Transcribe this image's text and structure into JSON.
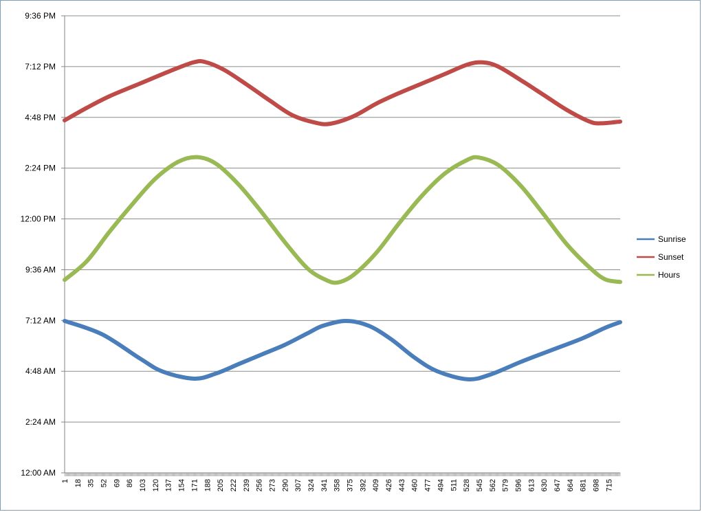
{
  "chart_data": {
    "type": "line",
    "title": "",
    "xlabel": "",
    "ylabel": "",
    "x_range": [
      1,
      730
    ],
    "x_tick_labels": [
      "1",
      "18",
      "35",
      "52",
      "69",
      "86",
      "103",
      "120",
      "137",
      "154",
      "171",
      "188",
      "205",
      "222",
      "239",
      "256",
      "273",
      "290",
      "307",
      "324",
      "341",
      "358",
      "375",
      "392",
      "409",
      "426",
      "443",
      "460",
      "477",
      "494",
      "511",
      "528",
      "545",
      "562",
      "579",
      "596",
      "613",
      "630",
      "647",
      "664",
      "681",
      "698",
      "715"
    ],
    "y_range_hours": [
      0,
      21.6
    ],
    "y_tick_values": [
      0,
      2.4,
      4.8,
      7.2,
      9.6,
      12,
      14.4,
      16.8,
      19.2,
      21.6
    ],
    "y_tick_labels": [
      "12:00 AM",
      "2:24 AM",
      "4:48 AM",
      "7:12 AM",
      "9:36 AM",
      "12:00 PM",
      "2:24 PM",
      "4:48 PM",
      "7:12 PM",
      "9:36 PM"
    ],
    "grid": "horizontal",
    "legend_position": "right",
    "series": [
      {
        "name": "Sunrise",
        "color": "#4a7ebb",
        "points": [
          [
            1,
            7.18
          ],
          [
            50,
            6.55
          ],
          [
            100,
            5.4
          ],
          [
            130,
            4.78
          ],
          [
            171,
            4.45
          ],
          [
            200,
            4.7
          ],
          [
            230,
            5.15
          ],
          [
            260,
            5.6
          ],
          [
            290,
            6.05
          ],
          [
            320,
            6.6
          ],
          [
            340,
            6.95
          ],
          [
            370,
            7.18
          ],
          [
            400,
            6.95
          ],
          [
            430,
            6.3
          ],
          [
            460,
            5.45
          ],
          [
            490,
            4.8
          ],
          [
            530,
            4.42
          ],
          [
            560,
            4.65
          ],
          [
            600,
            5.25
          ],
          [
            640,
            5.8
          ],
          [
            680,
            6.35
          ],
          [
            710,
            6.85
          ],
          [
            730,
            7.12
          ]
        ]
      },
      {
        "name": "Sunset",
        "color": "#be4b48",
        "points": [
          [
            1,
            16.66
          ],
          [
            30,
            17.25
          ],
          [
            60,
            17.8
          ],
          [
            100,
            18.4
          ],
          [
            140,
            19.0
          ],
          [
            170,
            19.4
          ],
          [
            185,
            19.42
          ],
          [
            210,
            19.05
          ],
          [
            240,
            18.35
          ],
          [
            270,
            17.6
          ],
          [
            300,
            16.9
          ],
          [
            330,
            16.55
          ],
          [
            350,
            16.5
          ],
          [
            380,
            16.85
          ],
          [
            410,
            17.45
          ],
          [
            440,
            17.95
          ],
          [
            470,
            18.4
          ],
          [
            500,
            18.85
          ],
          [
            530,
            19.3
          ],
          [
            550,
            19.4
          ],
          [
            570,
            19.2
          ],
          [
            600,
            18.55
          ],
          [
            630,
            17.85
          ],
          [
            660,
            17.15
          ],
          [
            690,
            16.6
          ],
          [
            705,
            16.52
          ],
          [
            730,
            16.6
          ]
        ]
      },
      {
        "name": "Hours",
        "color": "#98b954",
        "points": [
          [
            1,
            9.12
          ],
          [
            30,
            10.0
          ],
          [
            60,
            11.4
          ],
          [
            90,
            12.7
          ],
          [
            120,
            13.9
          ],
          [
            150,
            14.7
          ],
          [
            175,
            14.92
          ],
          [
            200,
            14.6
          ],
          [
            230,
            13.6
          ],
          [
            260,
            12.3
          ],
          [
            290,
            10.9
          ],
          [
            320,
            9.65
          ],
          [
            345,
            9.1
          ],
          [
            360,
            9.0
          ],
          [
            380,
            9.35
          ],
          [
            410,
            10.4
          ],
          [
            440,
            11.8
          ],
          [
            470,
            13.1
          ],
          [
            500,
            14.15
          ],
          [
            530,
            14.8
          ],
          [
            545,
            14.9
          ],
          [
            570,
            14.55
          ],
          [
            600,
            13.55
          ],
          [
            630,
            12.2
          ],
          [
            660,
            10.8
          ],
          [
            690,
            9.7
          ],
          [
            710,
            9.15
          ],
          [
            730,
            9.02
          ]
        ]
      }
    ]
  }
}
